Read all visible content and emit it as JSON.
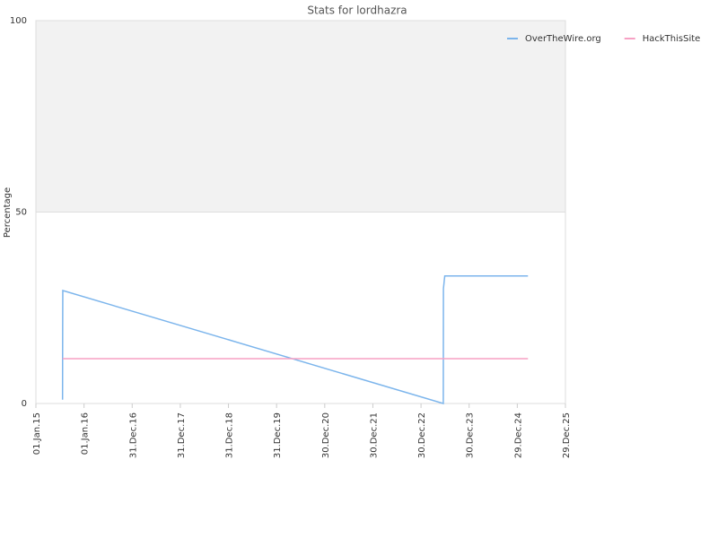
{
  "chart_data": {
    "type": "line",
    "title": "Stats for lordhazra",
    "y_label": "Percentage",
    "x": [
      "2015-07-22",
      "2015-07-23",
      "2015-07-24",
      "2023-06-17",
      "2023-06-18",
      "2023-06-28",
      "2025-03-20"
    ],
    "series": [
      {
        "name": "OverTheWire.org",
        "color": "#7cb5ec",
        "values": [
          1,
          20,
          29.5,
          0,
          30,
          33.3,
          33.3
        ]
      },
      {
        "name": "HackThisSite",
        "color": "#f7a1c4",
        "values": [
          11.7,
          11.7,
          11.7,
          11.7,
          11.7,
          11.7,
          11.7
        ]
      }
    ],
    "xlim": [
      "2015-01-01",
      "2025-12-29"
    ],
    "xticks": [
      {
        "value": "2015-01-01",
        "label": "01.Jan.15"
      },
      {
        "value": "2016-01-01",
        "label": "01.Jan.16"
      },
      {
        "value": "2016-12-31",
        "label": "31.Dec.16"
      },
      {
        "value": "2017-12-31",
        "label": "31.Dec.17"
      },
      {
        "value": "2018-12-31",
        "label": "31.Dec.18"
      },
      {
        "value": "2019-12-31",
        "label": "31.Dec.19"
      },
      {
        "value": "2020-12-30",
        "label": "30.Dec.20"
      },
      {
        "value": "2021-12-30",
        "label": "30.Dec.21"
      },
      {
        "value": "2022-12-30",
        "label": "30.Dec.22"
      },
      {
        "value": "2023-12-30",
        "label": "30.Dec.23"
      },
      {
        "value": "2024-12-29",
        "label": "29.Dec.24"
      },
      {
        "value": "2025-12-29",
        "label": "29.Dec.25"
      }
    ],
    "ylim": [
      0,
      100
    ],
    "yticks": [
      0,
      50,
      100
    ],
    "grid": true,
    "plot_band": {
      "from": 50,
      "to": 100,
      "color": "#f2f2f2"
    },
    "legend": "top-right"
  }
}
